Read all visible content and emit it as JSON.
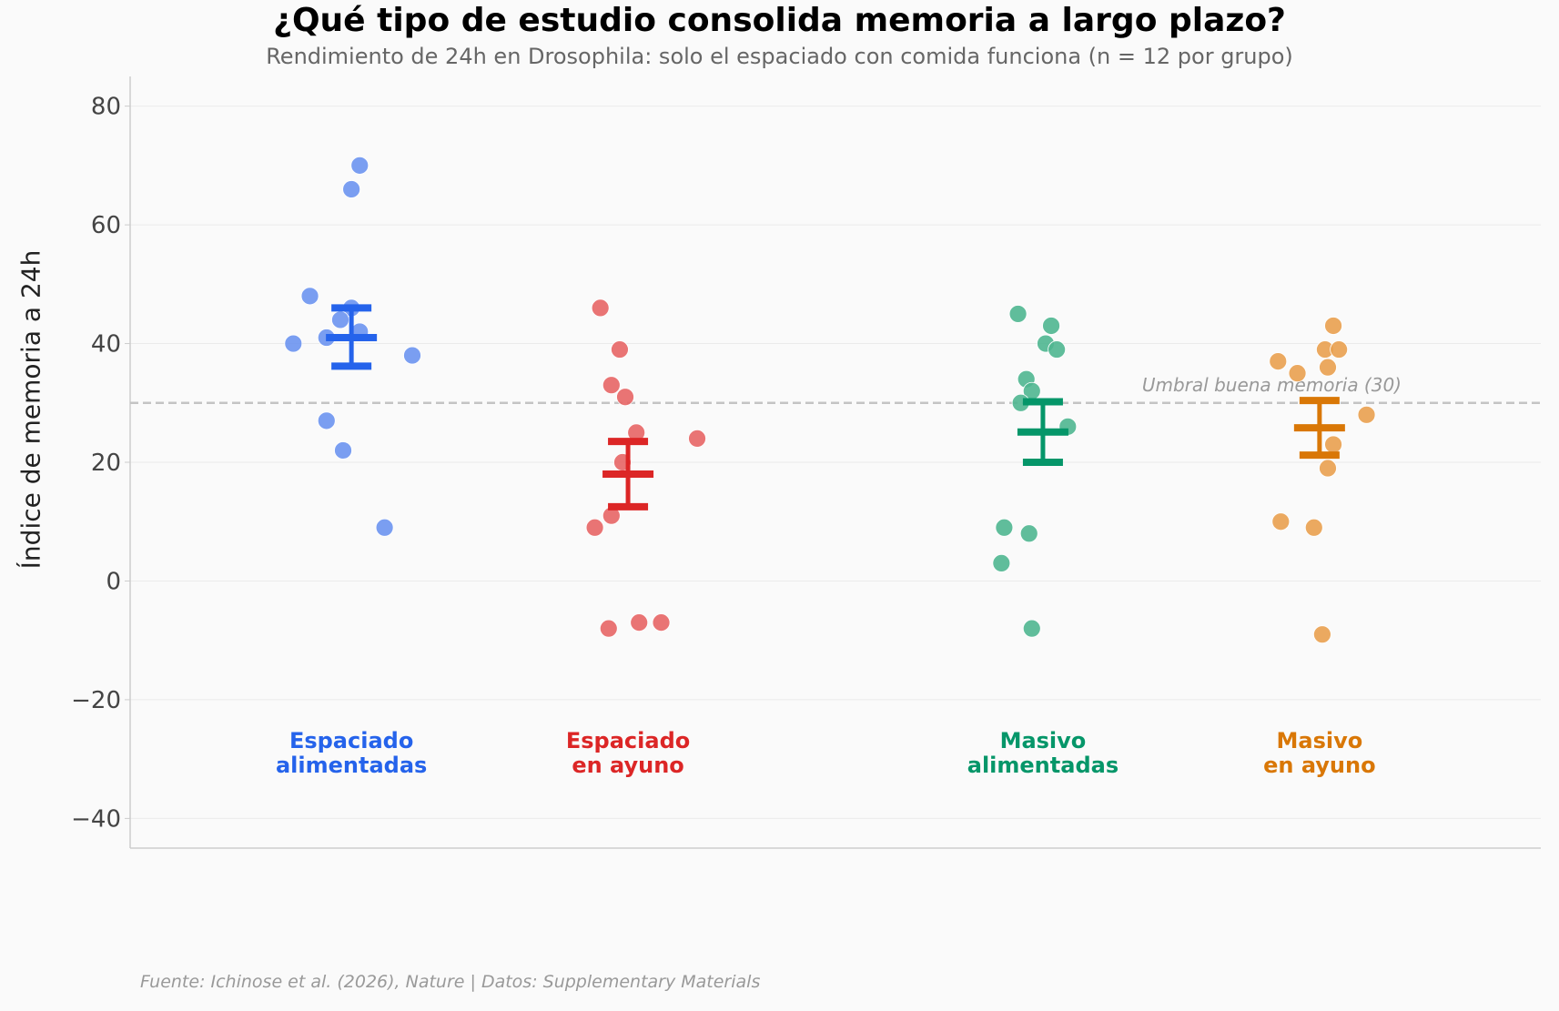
{
  "chart_data": {
    "type": "scatter",
    "title": "¿Qué tipo de estudio consolida memoria a largo plazo?",
    "subtitle": "Rendimiento de 24h en Drosophila: solo el espaciado con comida funciona (n = 12 por grupo)",
    "ylabel": "Índice de memoria a 24h",
    "xlabel": "",
    "ylim": [
      -45,
      85
    ],
    "xlim": [
      -0.8,
      4.3
    ],
    "yticks": [
      80,
      60,
      40,
      20,
      0,
      -20,
      -40
    ],
    "ytick_labels": [
      "80",
      "60",
      "40",
      "20",
      "0",
      "−20",
      "−40"
    ],
    "grid": true,
    "threshold": {
      "value": 30,
      "label": "Umbral buena memoria (30)"
    },
    "groups": [
      {
        "name_line1": "Espaciado",
        "name_line2": "alimentadas",
        "x": 0,
        "color": "#2563eb",
        "point_color": "#6b93f0",
        "mean": 41,
        "err_low": 36.2,
        "err_high": 46,
        "jitter": [
          0.03,
          0,
          -0.15,
          0,
          -0.04,
          0.03,
          -0.09,
          -0.21,
          0.22,
          -0.09,
          -0.03,
          0.12
        ],
        "values": [
          70,
          66,
          48,
          46,
          44,
          42,
          41,
          40,
          38,
          27,
          22,
          9
        ]
      },
      {
        "name_line1": "Espaciado",
        "name_line2": "en ayuno",
        "x": 1,
        "color": "#dc2626",
        "point_color": "#e76565",
        "mean": 18,
        "err_low": 12.5,
        "err_high": 23.5,
        "jitter": [
          -0.1,
          -0.03,
          -0.06,
          -0.01,
          0.03,
          0.25,
          -0.02,
          -0.06,
          -0.12,
          -0.07,
          0.04,
          0.12
        ],
        "values": [
          46,
          39,
          33,
          31,
          25,
          24,
          20,
          11,
          9,
          -8,
          -7,
          -7
        ]
      },
      {
        "name_line1": "Masivo",
        "name_line2": "alimentadas",
        "x": 2.5,
        "color": "#059669",
        "point_color": "#4fb690",
        "mean": 25.1,
        "err_low": 20,
        "err_high": 30.2,
        "jitter": [
          -0.09,
          0.03,
          0.01,
          0.05,
          -0.06,
          -0.04,
          -0.08,
          0.09,
          -0.14,
          -0.05,
          -0.15,
          -0.04
        ],
        "values": [
          45,
          43,
          40,
          39,
          34,
          32,
          30,
          26,
          9,
          8,
          3,
          -8
        ]
      },
      {
        "name_line1": "Masivo",
        "name_line2": "en ayuno",
        "x": 3.5,
        "color": "#d97706",
        "point_color": "#e9a04f",
        "mean": 25.8,
        "err_low": 21.2,
        "err_high": 30.4,
        "jitter": [
          0.05,
          0.02,
          0.07,
          -0.15,
          0.03,
          -0.08,
          0.17,
          0.05,
          0.03,
          -0.14,
          -0.02,
          0.01
        ],
        "values": [
          43,
          39,
          39,
          37,
          36,
          35,
          28,
          23,
          19,
          10,
          9,
          -9
        ]
      }
    ]
  },
  "source": "Fuente: Ichinose et al. (2026), Nature | Datos: Supplementary Materials"
}
